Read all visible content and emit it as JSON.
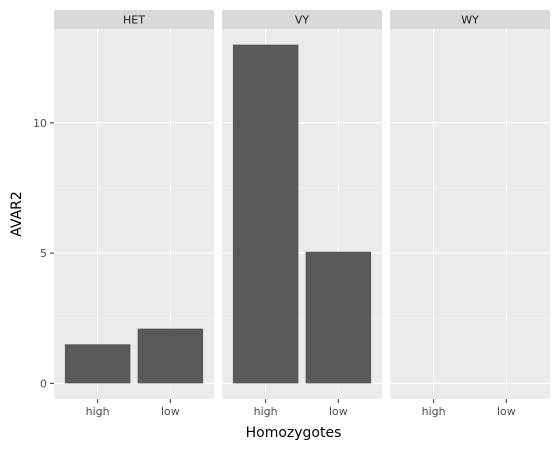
{
  "chart_data": {
    "type": "bar",
    "facet_by": "panel",
    "xlabel": "Homozygotes",
    "ylabel": "AVAR2",
    "ylim": [
      -0.6,
      13.6
    ],
    "yticks": [
      0,
      5,
      10
    ],
    "categories": [
      "high",
      "low"
    ],
    "panels": [
      {
        "name": "HET",
        "values": [
          1.5,
          2.1
        ]
      },
      {
        "name": "VY",
        "values": [
          13.0,
          5.05
        ]
      },
      {
        "name": "WY",
        "values": [
          null,
          null
        ]
      }
    ],
    "grid": true,
    "legend": "none",
    "colors": {
      "bar": "#595959",
      "panel_bg": "#ebebeb",
      "strip_bg": "#d9d9d9",
      "grid_major": "#ffffff",
      "grid_minor": "#f5f5f5"
    }
  }
}
